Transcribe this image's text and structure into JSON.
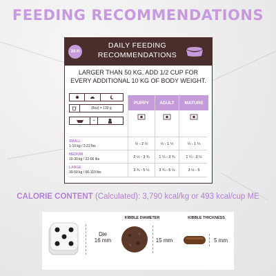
{
  "title": "FEEDING RECOMMENDATIONS",
  "card": {
    "badge": "24 H",
    "heading_line1": "DAILY FEEDING",
    "heading_line2": "RECOMMENDATIONS",
    "intro_line1": "LARGER THAN 50 KG, ADD 1/2 CUP FOR",
    "intro_line2": "EVERY ADDITIONAL 10 KG OF BODY WEIGHT.",
    "legend_cup": "(8oz) = 130 g",
    "columns": [
      "PUPPY",
      "ADULT",
      "MATURE"
    ],
    "rows": [
      {
        "size": "SMALL",
        "range": "1-10 kg / 2-22 lbs",
        "values": [
          "½ - 2 ½",
          "½ - 1 ½",
          "¼ - 1 ¼"
        ]
      },
      {
        "size": "MEDIUM",
        "range": "10-30 kg / 22-66 lbs",
        "values": [
          "2 ½ - 3 ¾",
          "1 ½ - 3 ¾",
          "1 ¼ - 3 ½"
        ]
      },
      {
        "size": "LARGE",
        "range": "30-50 kg / 66-110 lbs",
        "values": [
          "3 ¾ - 5 ½",
          "3 ¾ - 5 ½",
          "3 ½ - 5"
        ]
      }
    ]
  },
  "calorie": {
    "label": "CALORIE CONTENT",
    "qualifier": "(Calculated):",
    "value": "3,790 kcal/kg or 493 kcal/cup ME"
  },
  "kibble": {
    "die_label": "Die",
    "die_size": "16 mm",
    "diameter_label": "KIBBLE DIAMETER",
    "diameter_value": "15 mm",
    "thickness_label": "KIBBLE THICKNESS",
    "thickness_value": "5 mm"
  },
  "colors": {
    "accent": "#c69bd9",
    "brown": "#4a2e2c"
  }
}
